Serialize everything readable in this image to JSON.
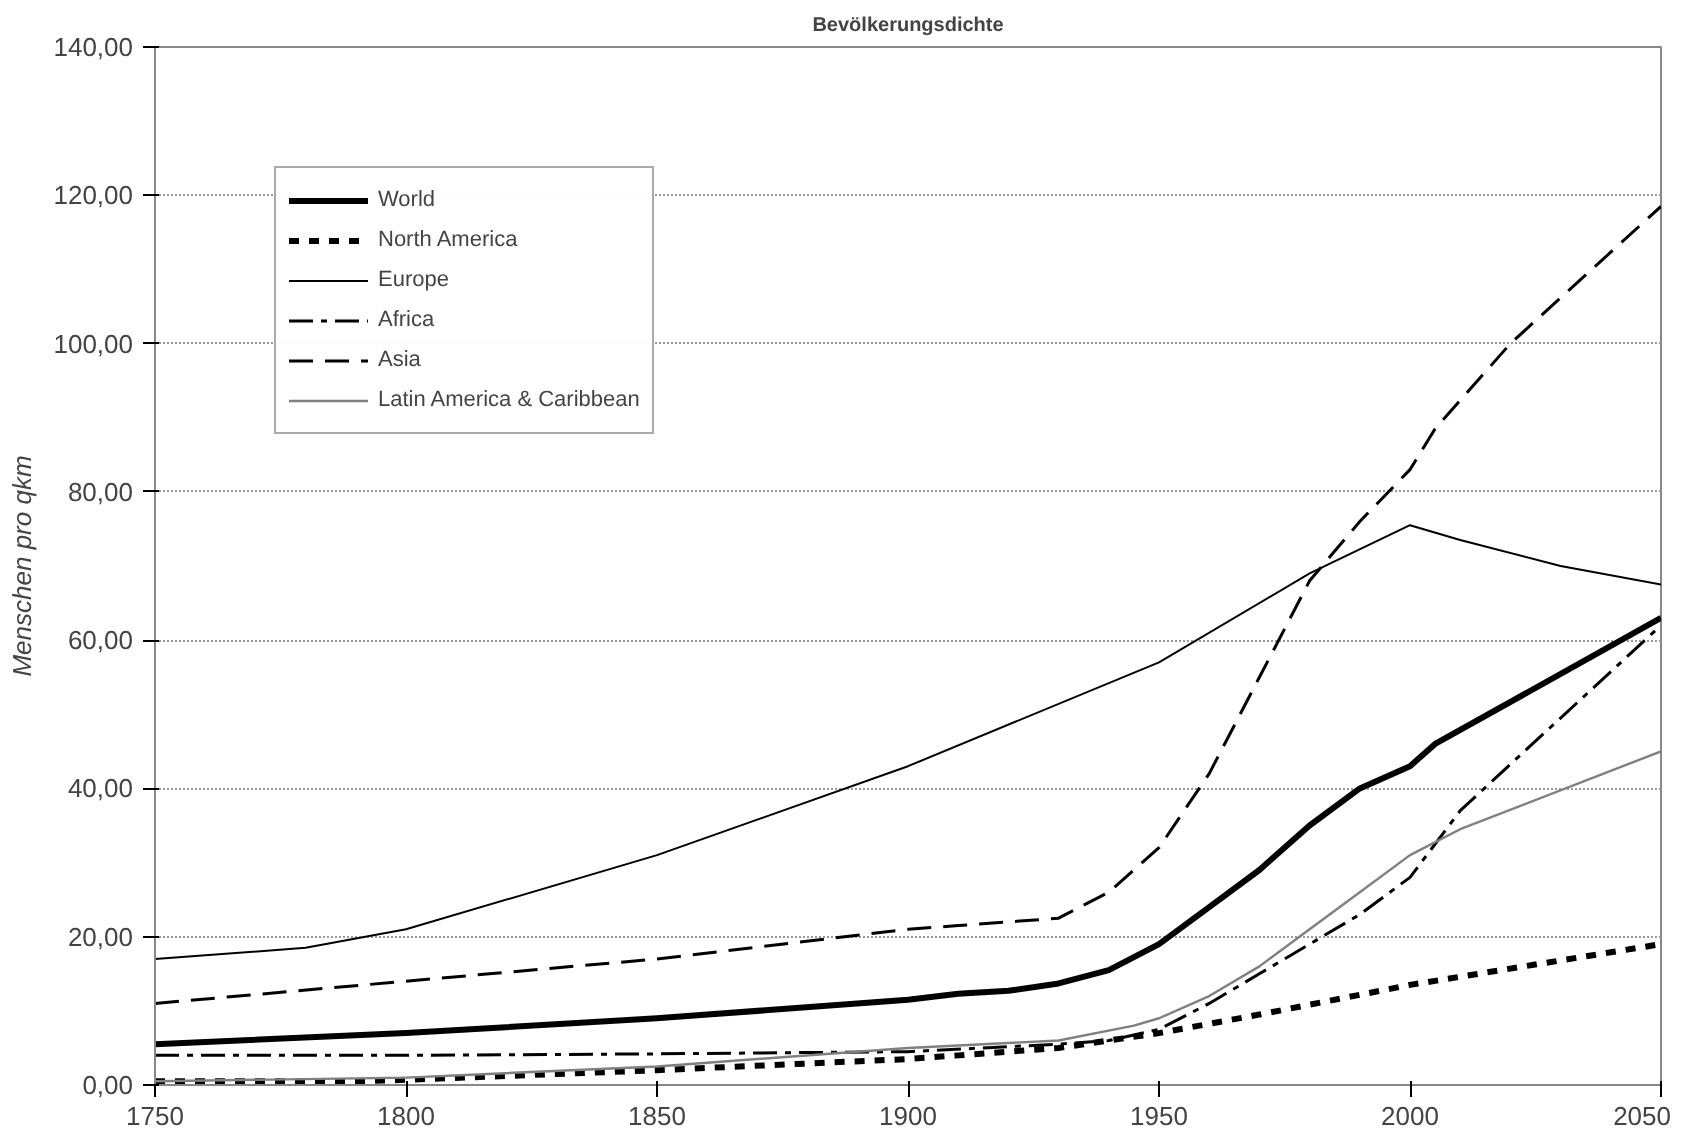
{
  "chart_data": {
    "type": "line",
    "title": "Bevölkerungsdichte",
    "ylabel": "Menschen pro qkm",
    "xlim": [
      1750,
      2050
    ],
    "xticks": [
      1750,
      1800,
      1850,
      1900,
      1950,
      2000,
      2050
    ],
    "ylim": [
      0,
      140
    ],
    "yticks": [
      {
        "value": 0,
        "label": "0,00"
      },
      {
        "value": 20,
        "label": "20,00"
      },
      {
        "value": 40,
        "label": "40,00"
      },
      {
        "value": 60,
        "label": "60,00"
      },
      {
        "value": 80,
        "label": "80,00"
      },
      {
        "value": 100,
        "label": "100,00"
      },
      {
        "value": 120,
        "label": "120,00"
      },
      {
        "value": 140,
        "label": "140,00"
      }
    ],
    "grid": "y",
    "legend": "top left",
    "series": [
      {
        "name": "World",
        "color": "#000000",
        "line_style": "solid",
        "x": [
          1750,
          1800,
          1850,
          1900,
          1910,
          1920,
          1930,
          1940,
          1950,
          1960,
          1970,
          1980,
          1990,
          2000,
          2005,
          2050
        ],
        "values": [
          5.5,
          7,
          9,
          11.5,
          12.3,
          12.7,
          13.7,
          15.5,
          19,
          24,
          29,
          35,
          40,
          43,
          46,
          63
        ]
      },
      {
        "name": "North America",
        "color": "#000000",
        "line_style": "dotted",
        "x": [
          1750,
          1790,
          1800,
          1850,
          1900,
          1930,
          1950,
          1970,
          2000,
          2050
        ],
        "values": [
          0.5,
          0.5,
          0.7,
          2,
          3.5,
          5,
          7,
          9.5,
          13.5,
          19
        ]
      },
      {
        "name": "Europe",
        "color": "#000000",
        "line_style": "solid",
        "x": [
          1750,
          1780,
          1800,
          1850,
          1900,
          1950,
          1980,
          2000,
          2010,
          2030,
          2050
        ],
        "values": [
          17,
          18.5,
          21,
          31,
          43,
          57,
          69,
          75.5,
          73.5,
          70,
          67.5
        ]
      },
      {
        "name": "Africa",
        "color": "#000000",
        "line_style": "dashdot",
        "x": [
          1750,
          1800,
          1850,
          1900,
          1930,
          1940,
          1950,
          1960,
          1970,
          1980,
          1990,
          2000,
          2010,
          2050
        ],
        "values": [
          4,
          4,
          4.2,
          4.5,
          5.5,
          6,
          7.5,
          11,
          15,
          19,
          23,
          28,
          37,
          62
        ]
      },
      {
        "name": "Asia",
        "color": "#000000",
        "line_style": "dashed",
        "x": [
          1750,
          1800,
          1850,
          1900,
          1910,
          1930,
          1940,
          1950,
          1960,
          1970,
          1980,
          1990,
          2000,
          2005,
          2020,
          2050
        ],
        "values": [
          11,
          14,
          17,
          21,
          21.5,
          22.5,
          26,
          32,
          42,
          55,
          68,
          76,
          83,
          88.5,
          100,
          118.5
        ]
      },
      {
        "name": "Latin America & Caribbean",
        "color": "#808080",
        "line_style": "solid",
        "x": [
          1750,
          1800,
          1850,
          1900,
          1930,
          1945,
          1950,
          1960,
          1970,
          1980,
          1990,
          2000,
          2010,
          2050
        ],
        "values": [
          0.5,
          1,
          2.5,
          5,
          6,
          8,
          9,
          12,
          16,
          21,
          26,
          31,
          34.5,
          45
        ]
      }
    ]
  }
}
